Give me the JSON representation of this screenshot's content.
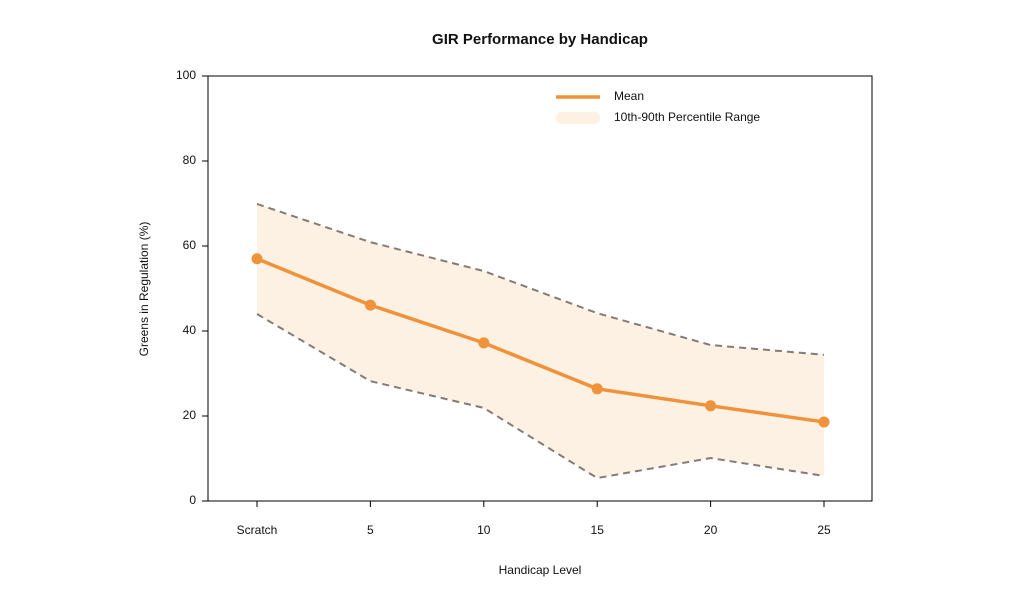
{
  "chart_data": {
    "type": "line",
    "title": "GIR Performance by Handicap",
    "x_label": "Handicap Level",
    "y_label": "Greens in Regulation (%)",
    "categories": [
      "Scratch",
      "5",
      "10",
      "15",
      "20",
      "25"
    ],
    "series": [
      {
        "name": "Mean",
        "color": "#f0923a",
        "values": [
          57,
          46.1,
          37.2,
          26.4,
          22.4,
          18.6
        ]
      }
    ],
    "band": {
      "name": "10th-90th Percentile Range",
      "color": "#fdf1e4",
      "line_color": "#857a75",
      "upper": [
        69.9,
        60.9,
        54.1,
        44.2,
        36.7,
        34.4
      ],
      "lower": [
        44,
        28.2,
        21.9,
        5.4,
        10.1,
        5.9
      ]
    },
    "ylim": [
      0,
      100
    ],
    "yticks": [
      0,
      20,
      40,
      60,
      80,
      100
    ],
    "legend": "top-right"
  }
}
